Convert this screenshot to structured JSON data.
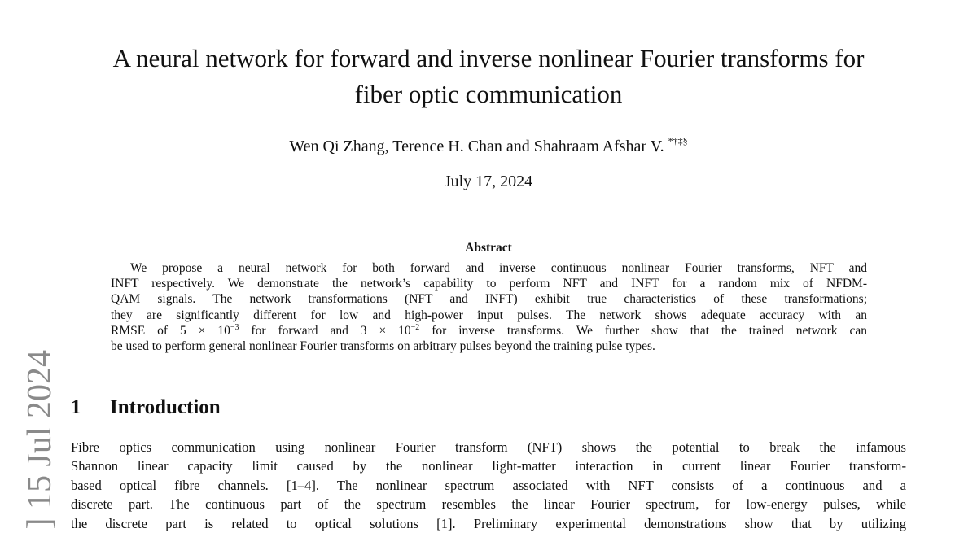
{
  "title": [
    "A neural network for forward and inverse nonlinear Fourier transforms for",
    "fiber optic communication"
  ],
  "authors": "Wen Qi Zhang, Terence H. Chan and Shahraam Afshar V.",
  "author_marks": "*†‡§",
  "date": "July 17, 2024",
  "arxiv_stamp": "] 15 Jul 2024",
  "abstract": {
    "heading": "Abstract",
    "lines": [
      "We propose a neural network for both forward and inverse continuous nonlinear Fourier transforms, NFT and",
      "INFT respectively. We demonstrate the network’s capability to perform NFT and INFT for a random mix of NFDM-",
      "QAM signals. The network transformations (NFT and INFT) exhibit true characteristics of these transformations;",
      "they are significantly different for low and high-power input pulses. The network shows adequate accuracy with an"
    ],
    "rmse_line": {
      "a": "RMSE of 5 × 10",
      "e1": "−3",
      "b": " for forward and 3 × 10",
      "e2": "−2",
      "c": " for inverse transforms. We further show that the trained network can"
    },
    "last_line": "be used to perform general nonlinear Fourier transforms on arbitrary pulses beyond the training pulse types."
  },
  "section": {
    "number": "1",
    "title": "Introduction"
  },
  "body_lines": [
    "Fibre optics communication using nonlinear Fourier transform (NFT) shows the potential to break the infamous",
    "Shannon linear capacity limit caused by the nonlinear light-matter interaction in current linear Fourier transform-",
    "based optical fibre channels. [1–4]. The nonlinear spectrum associated with NFT consists of a continuous and a",
    "discrete part. The continuous part of the spectrum resembles the linear Fourier spectrum, for low-energy pulses, while",
    "the discrete part is related to optical solutions [1]. Preliminary experimental demonstrations show that by utilizing"
  ]
}
